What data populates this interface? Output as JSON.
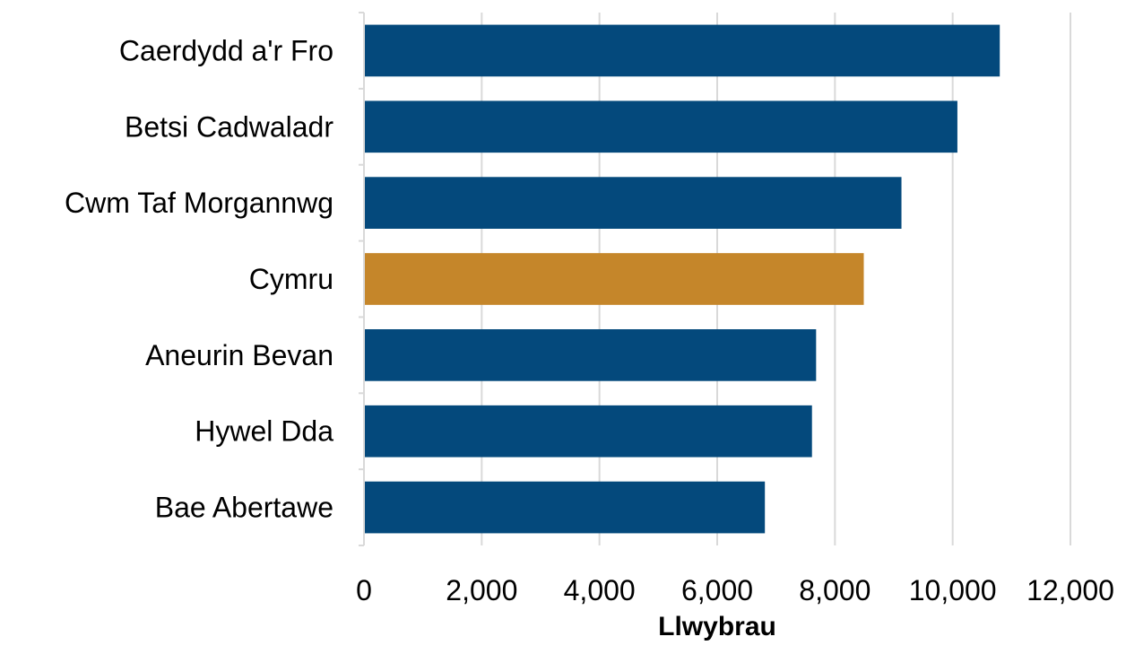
{
  "chart_data": {
    "type": "bar",
    "orientation": "horizontal",
    "categories": [
      "Caerdydd a'r Fro",
      "Betsi Cadwaladr",
      "Cwm Taf Morgannwg",
      "Cymru",
      "Aneurin Bevan",
      "Hywel Dda",
      "Bae Abertawe"
    ],
    "values": [
      10800,
      10080,
      9130,
      8490,
      7680,
      7610,
      6810
    ],
    "xlabel": "Llwybrau",
    "ylabel": "",
    "xlim": [
      0,
      12000
    ],
    "x_ticks": [
      0,
      2000,
      4000,
      6000,
      8000,
      10000,
      12000
    ],
    "x_tick_labels": [
      "0",
      "2,000",
      "4,000",
      "6,000",
      "8,000",
      "10,000",
      "12,000"
    ],
    "grid": "vertical",
    "legend": "none",
    "colors": {
      "default": "#04497c",
      "highlight": "#c5862a",
      "highlight_category": "Cymru",
      "grid": "#d9d9d9",
      "axis": "#d9d9d9",
      "text": "#000000"
    }
  }
}
